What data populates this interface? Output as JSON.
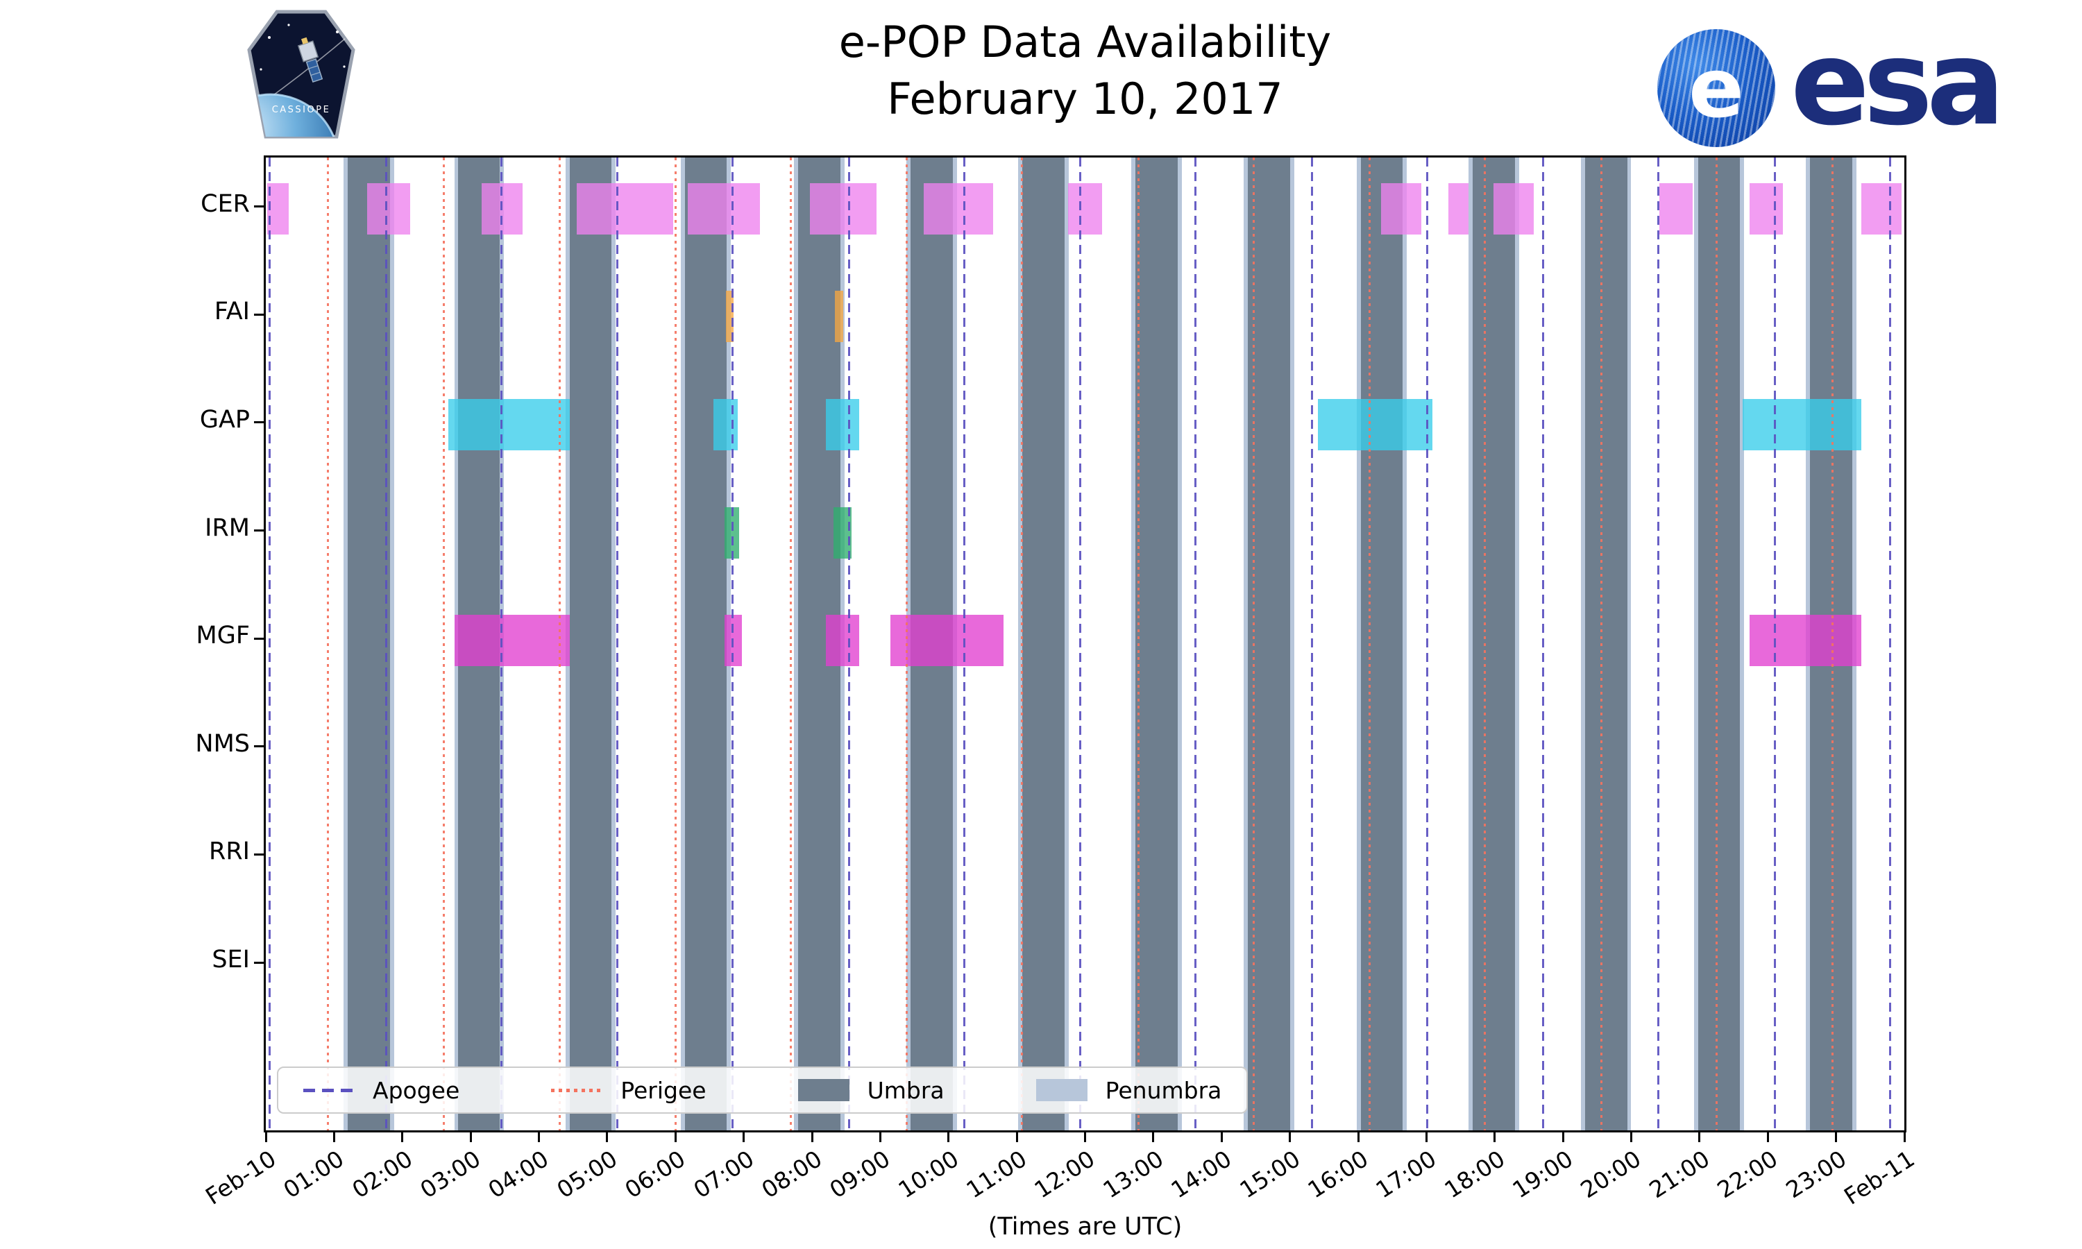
{
  "header": {
    "title": "e-POP Data Availability",
    "subtitle": "February 10, 2017"
  },
  "logos": {
    "cassiope_patch_text": "CASSIOPE",
    "esa_globe_letter": "e",
    "esa_wordmark": "esa"
  },
  "chart_data": {
    "type": "timeline",
    "title": "e-POP Data Availability",
    "subtitle": "February 10, 2017",
    "xlabel": "(Times are UTC)",
    "xlim_hours": [
      0,
      24
    ],
    "x_ticks": [
      {
        "hour": 0,
        "label": "Feb-10"
      },
      {
        "hour": 1,
        "label": "01:00"
      },
      {
        "hour": 2,
        "label": "02:00"
      },
      {
        "hour": 3,
        "label": "03:00"
      },
      {
        "hour": 4,
        "label": "04:00"
      },
      {
        "hour": 5,
        "label": "05:00"
      },
      {
        "hour": 6,
        "label": "06:00"
      },
      {
        "hour": 7,
        "label": "07:00"
      },
      {
        "hour": 8,
        "label": "08:00"
      },
      {
        "hour": 9,
        "label": "09:00"
      },
      {
        "hour": 10,
        "label": "10:00"
      },
      {
        "hour": 11,
        "label": "11:00"
      },
      {
        "hour": 12,
        "label": "12:00"
      },
      {
        "hour": 13,
        "label": "13:00"
      },
      {
        "hour": 14,
        "label": "14:00"
      },
      {
        "hour": 15,
        "label": "15:00"
      },
      {
        "hour": 16,
        "label": "16:00"
      },
      {
        "hour": 17,
        "label": "17:00"
      },
      {
        "hour": 18,
        "label": "18:00"
      },
      {
        "hour": 19,
        "label": "19:00"
      },
      {
        "hour": 20,
        "label": "20:00"
      },
      {
        "hour": 21,
        "label": "21:00"
      },
      {
        "hour": 22,
        "label": "22:00"
      },
      {
        "hour": 23,
        "label": "23:00"
      },
      {
        "hour": 24,
        "label": "Feb-11"
      }
    ],
    "rows": [
      "CER",
      "FAI",
      "GAP",
      "IRM",
      "MGF",
      "NMS",
      "RRI",
      "SEI"
    ],
    "orbit_events": {
      "apogee_hours": [
        0.06,
        1.76,
        3.45,
        5.15,
        6.84,
        8.54,
        10.23,
        11.93,
        13.62,
        15.32,
        17.01,
        18.71,
        20.4,
        22.1,
        23.79
      ],
      "perigee_hours": [
        0.91,
        2.61,
        4.3,
        6.0,
        7.69,
        9.39,
        11.08,
        12.78,
        14.47,
        16.17,
        17.86,
        19.56,
        21.25,
        22.95
      ]
    },
    "umbra_intervals_hours": [
      [
        1.2,
        1.82
      ],
      [
        2.82,
        3.43
      ],
      [
        4.45,
        5.06
      ],
      [
        6.14,
        6.75
      ],
      [
        7.8,
        8.42
      ],
      [
        9.44,
        10.06
      ],
      [
        11.08,
        11.7
      ],
      [
        12.74,
        13.36
      ],
      [
        14.38,
        15.0
      ],
      [
        16.04,
        16.65
      ],
      [
        17.68,
        18.3
      ],
      [
        19.32,
        19.94
      ],
      [
        20.98,
        21.59
      ],
      [
        22.62,
        23.24
      ]
    ],
    "penumbra_pad_hours": 0.06,
    "availability": [
      {
        "instrument": "CER",
        "color": "#ee82ee",
        "intervals": [
          [
            0.02,
            0.34
          ],
          [
            1.48,
            2.11
          ],
          [
            3.16,
            3.76
          ],
          [
            4.55,
            5.97
          ],
          [
            6.18,
            7.24
          ],
          [
            7.97,
            8.95
          ],
          [
            9.64,
            10.65
          ],
          [
            11.75,
            12.25
          ],
          [
            16.34,
            16.93
          ],
          [
            17.32,
            17.62
          ],
          [
            17.98,
            18.57
          ],
          [
            20.41,
            20.9
          ],
          [
            21.73,
            22.22
          ],
          [
            23.37,
            23.96
          ]
        ]
      },
      {
        "instrument": "FAI",
        "color": "#f5a742",
        "intervals": [
          [
            6.74,
            6.85
          ],
          [
            8.34,
            8.46
          ]
        ]
      },
      {
        "instrument": "GAP",
        "color": "#38cdea",
        "intervals": [
          [
            2.67,
            4.45
          ],
          [
            6.56,
            6.91
          ],
          [
            8.2,
            8.69
          ],
          [
            15.41,
            17.09
          ],
          [
            21.63,
            23.37
          ]
        ]
      },
      {
        "instrument": "IRM",
        "color": "#2fae6e",
        "intervals": [
          [
            6.72,
            6.93
          ],
          [
            8.32,
            8.58
          ]
        ]
      },
      {
        "instrument": "MGF",
        "color": "#e23fd0",
        "intervals": [
          [
            2.77,
            4.45
          ],
          [
            6.72,
            6.97
          ],
          [
            8.2,
            8.69
          ],
          [
            9.15,
            10.81
          ],
          [
            21.73,
            23.37
          ]
        ]
      },
      {
        "instrument": "NMS",
        "color": "#bbbbbb",
        "intervals": []
      },
      {
        "instrument": "RRI",
        "color": "#bbbbbb",
        "intervals": []
      },
      {
        "instrument": "SEI",
        "color": "#bbbbbb",
        "intervals": []
      }
    ],
    "legend": [
      {
        "label": "Apogee",
        "style": "dashed-line",
        "color": "#5b51c0"
      },
      {
        "label": "Perigee",
        "style": "dotted-line",
        "color": "#f4735f"
      },
      {
        "label": "Umbra",
        "style": "patch",
        "color": "#6e7e8e"
      },
      {
        "label": "Penumbra",
        "style": "patch",
        "color": "#b7c6da"
      }
    ],
    "colors": {
      "umbra": "#6e7e8e",
      "penumbra": "#b7c6da",
      "apogee": "#5b51c0",
      "perigee": "#f4735f",
      "axis": "#000000"
    }
  }
}
